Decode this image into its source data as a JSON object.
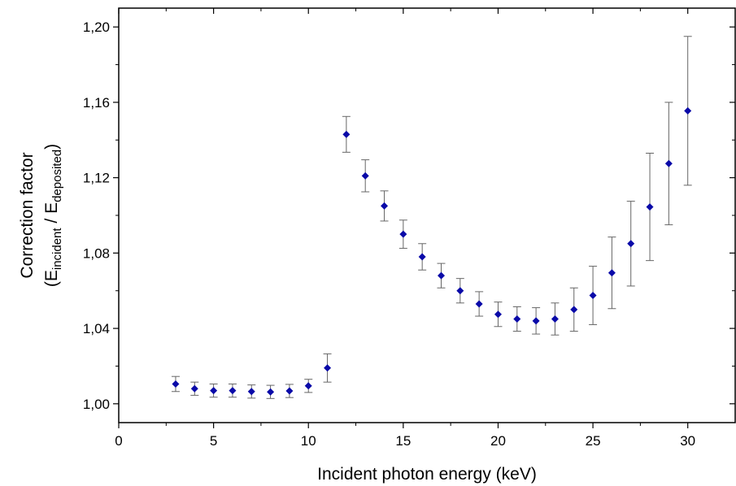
{
  "chart_data": {
    "type": "scatter",
    "title": "",
    "xlabel": "Incident photon energy (keV)",
    "ylabel": {
      "line1": "Correction factor",
      "open_paren": "(E",
      "sub1": "incident",
      "slash": " / E",
      "sub2": "deposited",
      "close_paren": ")"
    },
    "xlim": [
      0,
      32.5
    ],
    "ylim": [
      0.99,
      1.21
    ],
    "x_ticks": [
      {
        "value": 0,
        "label": "0"
      },
      {
        "value": 5,
        "label": "5"
      },
      {
        "value": 10,
        "label": "10"
      },
      {
        "value": 15,
        "label": "15"
      },
      {
        "value": 20,
        "label": "20"
      },
      {
        "value": 25,
        "label": "25"
      },
      {
        "value": 30,
        "label": "30"
      }
    ],
    "y_ticks": [
      {
        "value": 1.0,
        "label": "1,00"
      },
      {
        "value": 1.04,
        "label": "1,04"
      },
      {
        "value": 1.08,
        "label": "1,08"
      },
      {
        "value": 1.12,
        "label": "1,12"
      },
      {
        "value": 1.16,
        "label": "1,16"
      },
      {
        "value": 1.2,
        "label": "1,20"
      }
    ],
    "grid": false,
    "marker_color": "#0a0aa8",
    "errorbar_color": "#666666",
    "points": [
      {
        "x": 3,
        "y": 1.0105,
        "err": 0.004
      },
      {
        "x": 4,
        "y": 1.008,
        "err": 0.0035
      },
      {
        "x": 5,
        "y": 1.007,
        "err": 0.0035
      },
      {
        "x": 6,
        "y": 1.007,
        "err": 0.0035
      },
      {
        "x": 7,
        "y": 1.0065,
        "err": 0.0035
      },
      {
        "x": 8,
        "y": 1.0063,
        "err": 0.0035
      },
      {
        "x": 9,
        "y": 1.0068,
        "err": 0.0035
      },
      {
        "x": 10,
        "y": 1.0095,
        "err": 0.0035
      },
      {
        "x": 11,
        "y": 1.019,
        "err": 0.0075
      },
      {
        "x": 12,
        "y": 1.143,
        "err": 0.0095
      },
      {
        "x": 13,
        "y": 1.121,
        "err": 0.0085
      },
      {
        "x": 14,
        "y": 1.105,
        "err": 0.008
      },
      {
        "x": 15,
        "y": 1.09,
        "err": 0.0075
      },
      {
        "x": 16,
        "y": 1.078,
        "err": 0.007
      },
      {
        "x": 17,
        "y": 1.068,
        "err": 0.0065
      },
      {
        "x": 18,
        "y": 1.06,
        "err": 0.0065
      },
      {
        "x": 19,
        "y": 1.053,
        "err": 0.0065
      },
      {
        "x": 20,
        "y": 1.0475,
        "err": 0.0065
      },
      {
        "x": 21,
        "y": 1.045,
        "err": 0.0065
      },
      {
        "x": 22,
        "y": 1.044,
        "err": 0.007
      },
      {
        "x": 23,
        "y": 1.045,
        "err": 0.0085
      },
      {
        "x": 24,
        "y": 1.05,
        "err": 0.0115
      },
      {
        "x": 25,
        "y": 1.0575,
        "err": 0.0155
      },
      {
        "x": 26,
        "y": 1.0695,
        "err": 0.019
      },
      {
        "x": 27,
        "y": 1.085,
        "err": 0.0225
      },
      {
        "x": 28,
        "y": 1.1045,
        "err": 0.0285
      },
      {
        "x": 29,
        "y": 1.1275,
        "err": 0.0325
      },
      {
        "x": 30,
        "y": 1.1555,
        "err": 0.0395
      }
    ]
  }
}
